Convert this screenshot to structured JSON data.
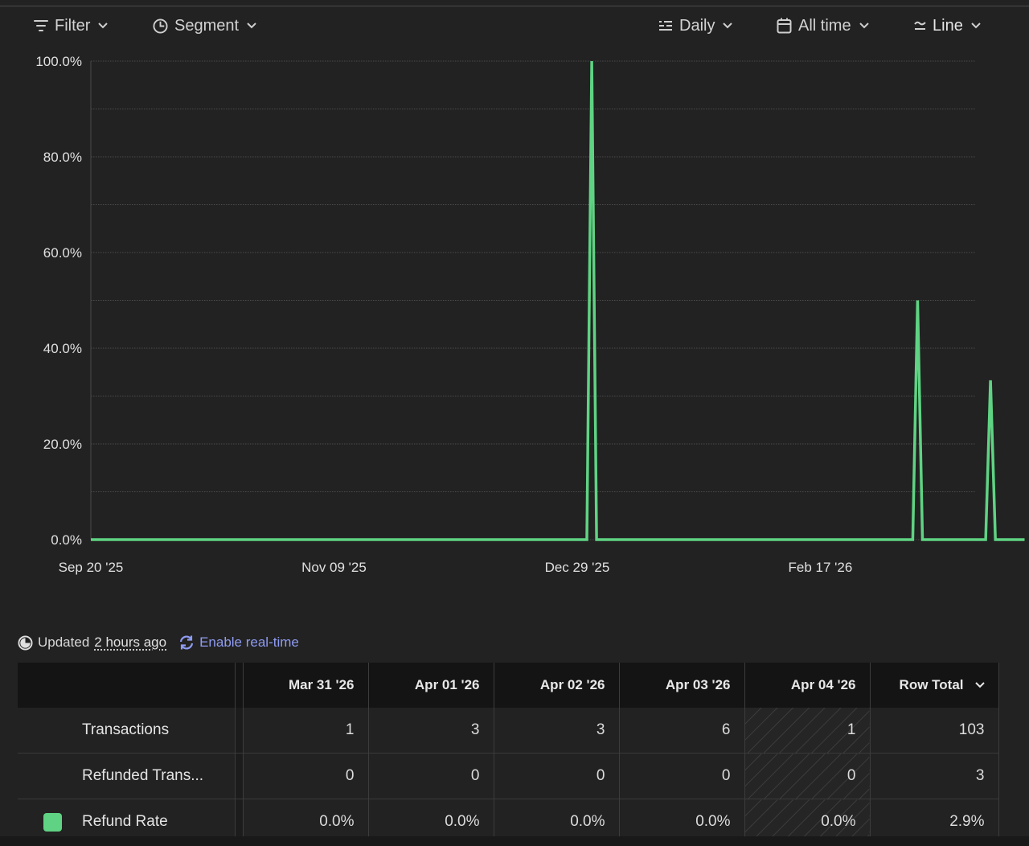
{
  "toolbar": {
    "filter_label": "Filter",
    "segment_label": "Segment",
    "interval_label": "Daily",
    "range_label": "All time",
    "chart_type_label": "Line"
  },
  "colors": {
    "series": "#5fd383",
    "link": "#8f9cf3",
    "background": "#222222"
  },
  "chart_data": {
    "type": "line",
    "x_start": "Sep 20 '25",
    "x_end": "Mar 21 '26",
    "x_ticks": [
      "Sep 20 '25",
      "Nov 09 '25",
      "Dec 29 '25",
      "Feb 17 '26"
    ],
    "y_ticks": [
      "0.0%",
      "20.0%",
      "40.0%",
      "60.0%",
      "80.0%",
      "100.0%"
    ],
    "ylim": [
      0,
      100
    ],
    "grid": true,
    "series": [
      {
        "color": "#5fd383",
        "points": [
          [
            "Sep 20 '25",
            0
          ],
          [
            "Dec 31 '25",
            0
          ],
          [
            "Jan 01 '26",
            100
          ],
          [
            "Jan 02 '26",
            0
          ],
          [
            "Mar 08 '26",
            0
          ],
          [
            "Mar 09 '26",
            50
          ],
          [
            "Mar 10 '26",
            0
          ],
          [
            "Mar 23 '26",
            0
          ],
          [
            "Mar 24 '26",
            33.3
          ],
          [
            "Mar 25 '26",
            0
          ],
          [
            "Mar 31 '26",
            0
          ]
        ]
      }
    ]
  },
  "status": {
    "updated_prefix": "Updated",
    "updated_ago": "2 hours ago",
    "realtime_label": "Enable real-time"
  },
  "table": {
    "columns": [
      "Mar 31 '26",
      "Apr 01 '26",
      "Apr 02 '26",
      "Apr 03 '26",
      "Apr 04 '26"
    ],
    "total_label": "Row Total",
    "rows": [
      {
        "label": "Transactions",
        "values": [
          "1",
          "3",
          "3",
          "6",
          "1"
        ],
        "total": "103"
      },
      {
        "label": "Refunded Trans...",
        "values": [
          "0",
          "0",
          "0",
          "0",
          "0"
        ],
        "total": "3"
      },
      {
        "label": "Refund Rate",
        "values": [
          "0.0%",
          "0.0%",
          "0.0%",
          "0.0%",
          "0.0%"
        ],
        "total": "2.9%"
      }
    ]
  }
}
